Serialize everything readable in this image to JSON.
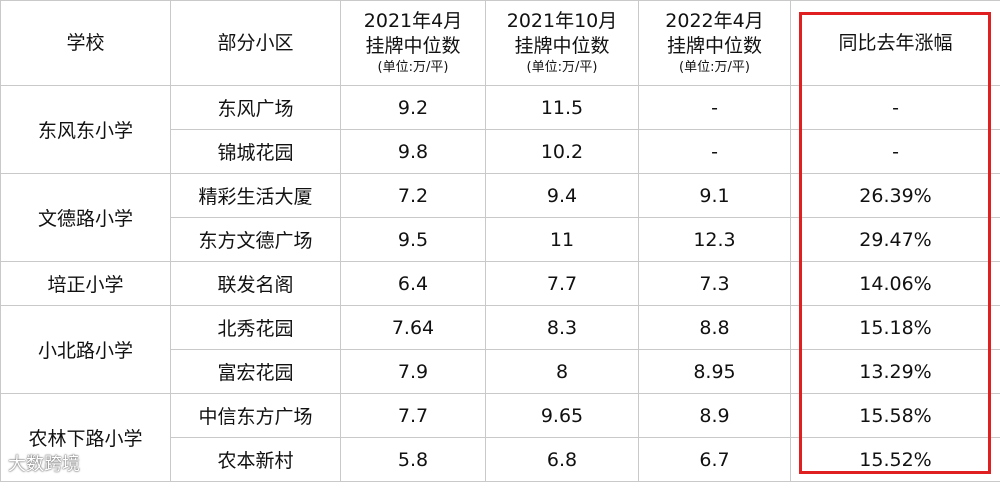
{
  "table": {
    "header": {
      "school": "学校",
      "community": "部分小区",
      "columns": [
        {
          "period": "2021年4月",
          "metric": "挂牌中位数",
          "unit": "(单位:万/平)"
        },
        {
          "period": "2021年10月",
          "metric": "挂牌中位数",
          "unit": "(单位:万/平)"
        },
        {
          "period": "2022年4月",
          "metric": "挂牌中位数",
          "unit": "(单位:万/平)"
        }
      ],
      "change": "同比去年涨幅"
    },
    "groups": [
      {
        "school": "东风东小学",
        "rows": [
          [
            "东风广场",
            "9.2",
            "11.5",
            "-",
            "-"
          ],
          [
            "锦城花园",
            "9.8",
            "10.2",
            "-",
            "-"
          ]
        ]
      },
      {
        "school": "文德路小学",
        "rows": [
          [
            "精彩生活大厦",
            "7.2",
            "9.4",
            "9.1",
            "26.39%"
          ],
          [
            "东方文德广场",
            "9.5",
            "11",
            "12.3",
            "29.47%"
          ]
        ]
      },
      {
        "school": "培正小学",
        "rows": [
          [
            "联发名阁",
            "6.4",
            "7.7",
            "7.3",
            "14.06%"
          ]
        ]
      },
      {
        "school": "小北路小学",
        "rows": [
          [
            "北秀花园",
            "7.64",
            "8.3",
            "8.8",
            "15.18%"
          ],
          [
            "富宏花园",
            "7.9",
            "8",
            "8.95",
            "13.29%"
          ]
        ]
      },
      {
        "school": "农林下路小学",
        "rows": [
          [
            "中信东方广场",
            "7.7",
            "9.65",
            "8.9",
            "15.58%"
          ],
          [
            "农本新村",
            "5.8",
            "6.8",
            "6.7",
            "15.52%"
          ]
        ]
      }
    ]
  },
  "watermark": "大数跨境"
}
